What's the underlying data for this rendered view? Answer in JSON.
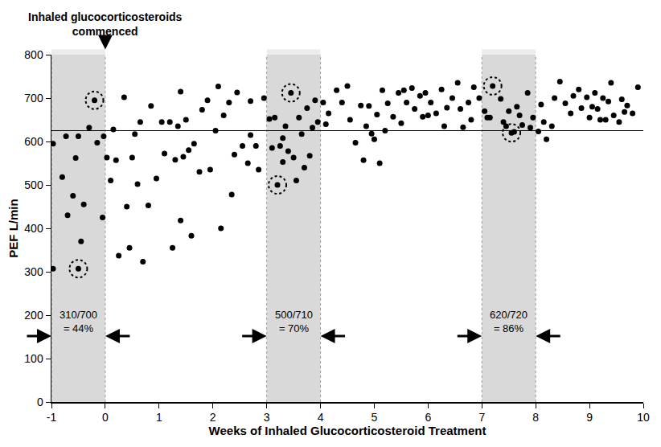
{
  "chart_data": {
    "type": "scatter",
    "x_label": "Weeks of Inhaled Glucocorticosteroid Treatment",
    "y_label": "PEF L/min",
    "xlim": [
      -1,
      10
    ],
    "xticks": [
      -1,
      0,
      1,
      2,
      3,
      4,
      5,
      6,
      7,
      8,
      9,
      10
    ],
    "ylim": [
      0,
      800
    ],
    "yticks": [
      0,
      100,
      200,
      300,
      400,
      500,
      600,
      700,
      800
    ],
    "grid": false,
    "reference_line": 625,
    "event": {
      "x": 0,
      "text": [
        "Inhaled glucocorticosteroids",
        "commenced"
      ]
    },
    "bands": [
      {
        "x": [
          -1,
          0
        ],
        "label": [
          "310/700",
          "= 44%"
        ]
      },
      {
        "x": [
          3,
          4
        ],
        "label": [
          "500/710",
          "= 70%"
        ]
      },
      {
        "x": [
          7,
          8
        ],
        "label": [
          "620/720",
          "= 86%"
        ]
      }
    ],
    "series": [
      {
        "type": "scatter",
        "marker": "dot",
        "color": "#000000",
        "x": [
          -0.97,
          -0.97,
          -0.8,
          -0.73,
          -0.7,
          -0.6,
          -0.55,
          -0.5,
          -0.5,
          -0.45,
          -0.4,
          -0.3,
          -0.2,
          -0.15,
          -0.05,
          -0.03,
          0.03,
          0.1,
          0.15,
          0.2,
          0.25,
          0.35,
          0.4,
          0.45,
          0.5,
          0.55,
          0.6,
          0.65,
          0.7,
          0.8,
          0.85,
          0.95,
          1.05,
          1.1,
          1.2,
          1.25,
          1.3,
          1.35,
          1.4,
          1.4,
          1.45,
          1.5,
          1.55,
          1.6,
          1.65,
          1.75,
          1.8,
          1.9,
          1.95,
          2.05,
          2.1,
          2.15,
          2.2,
          2.3,
          2.35,
          2.4,
          2.45,
          2.55,
          2.65,
          2.7,
          2.7,
          2.8,
          2.85,
          2.95,
          3.05,
          3.1,
          3.15,
          3.2,
          3.25,
          3.3,
          3.3,
          3.35,
          3.4,
          3.45,
          3.5,
          3.55,
          3.6,
          3.65,
          3.7,
          3.75,
          3.8,
          3.85,
          3.9,
          3.95,
          4.05,
          4.1,
          4.15,
          4.3,
          4.4,
          4.5,
          4.55,
          4.65,
          4.75,
          4.8,
          4.85,
          4.9,
          4.95,
          5.0,
          5.05,
          5.1,
          5.15,
          5.2,
          5.25,
          5.35,
          5.45,
          5.5,
          5.55,
          5.6,
          5.7,
          5.75,
          5.85,
          5.9,
          5.95,
          6.0,
          6.05,
          6.15,
          6.25,
          6.3,
          6.35,
          6.45,
          6.55,
          6.6,
          6.65,
          6.75,
          6.8,
          6.85,
          6.95,
          7.05,
          7.1,
          7.15,
          7.2,
          7.35,
          7.4,
          7.45,
          7.5,
          7.55,
          7.6,
          7.65,
          7.7,
          7.75,
          7.85,
          7.9,
          7.95,
          8.05,
          8.1,
          8.15,
          8.2,
          8.3,
          8.35,
          8.45,
          8.55,
          8.65,
          8.7,
          8.8,
          8.85,
          8.95,
          9.0,
          9.05,
          9.1,
          9.15,
          9.2,
          9.25,
          9.3,
          9.35,
          9.4,
          9.45,
          9.55,
          9.6,
          9.65,
          9.7,
          9.8,
          9.9
        ],
        "values": [
          307,
          595,
          518,
          612,
          430,
          475,
          562,
          307,
          612,
          370,
          455,
          632,
          695,
          597,
          425,
          612,
          563,
          510,
          628,
          557,
          337,
          702,
          450,
          355,
          563,
          617,
          502,
          645,
          323,
          453,
          682,
          515,
          645,
          572,
          645,
          355,
          558,
          635,
          715,
          418,
          565,
          650,
          580,
          383,
          595,
          530,
          673,
          695,
          535,
          625,
          727,
          400,
          660,
          690,
          478,
          570,
          713,
          590,
          550,
          615,
          693,
          590,
          535,
          700,
          652,
          585,
          655,
          500,
          590,
          553,
          608,
          635,
          578,
          712,
          563,
          510,
          655,
          617,
          540,
          677,
          567,
          632,
          695,
          645,
          690,
          640,
          665,
          718,
          690,
          728,
          650,
          597,
          683,
          557,
          635,
          682,
          618,
          605,
          662,
          550,
          718,
          625,
          688,
          657,
          712,
          642,
          718,
          690,
          723,
          675,
          705,
          657,
          712,
          660,
          690,
          665,
          720,
          635,
          678,
          700,
          735,
          675,
          633,
          690,
          650,
          725,
          700,
          670,
          655,
          655,
          728,
          698,
          645,
          635,
          670,
          620,
          622,
          680,
          660,
          638,
          712,
          632,
          655,
          623,
          685,
          645,
          605,
          635,
          700,
          738,
          688,
          665,
          705,
          720,
          677,
          702,
          655,
          680,
          712,
          675,
          650,
          700,
          650,
          692,
          735,
          660,
          645,
          697,
          668,
          683,
          665,
          725
        ]
      },
      {
        "type": "scatter",
        "marker": "ring",
        "line_style": "dotted",
        "color": "#000000",
        "x": [
          -0.2,
          -0.5,
          3.2,
          3.45,
          7.2,
          7.55
        ],
        "values": [
          695,
          307,
          500,
          712,
          728,
          620
        ]
      }
    ]
  }
}
